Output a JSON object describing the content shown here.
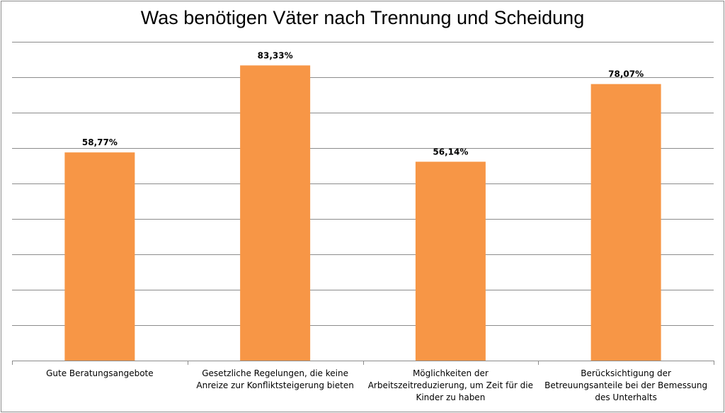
{
  "chart_data": {
    "type": "bar",
    "title": "Was benötigen Väter nach Trennung und Scheidung",
    "xlabel": "",
    "ylabel": "",
    "categories": [
      "Gute Beratungsangebote",
      "Gesetzliche Regelungen, die keine Anreize zur Konfliktsteigerung bieten",
      "Möglichkeiten der Arbeitszeitreduzierung, um Zeit für die Kinder zu haben",
      "Berücksichtigung der Betreuungsanteile bei der Bemessung des Unterhalts"
    ],
    "values": [
      58.77,
      83.33,
      56.14,
      78.07
    ],
    "value_labels": [
      "58,77%",
      "83,33%",
      "56,14%",
      "78,07%"
    ],
    "ylim": [
      0,
      90
    ],
    "grid": true,
    "bar_color": "#f79646"
  }
}
